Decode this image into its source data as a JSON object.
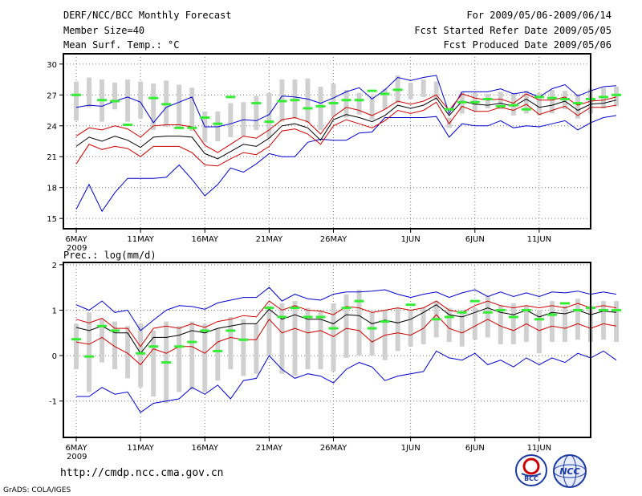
{
  "header": {
    "title": "DERF/NCC/BCC Monthly Forecast",
    "member_size": "Member Size=40",
    "variable": "Mean Surf. Temp.: °C",
    "period": "For 2009/05/06-2009/06/14",
    "started": "Fcst Started Refer Date 2009/05/05",
    "produced": "Fcst Produced Date 2009/05/06"
  },
  "footer": {
    "url": "http://cmdp.ncc.cma.gov.cn",
    "credit": "GrADS: COLA/IGES",
    "logo_left": "BCC",
    "logo_right": "NCC"
  },
  "colors": {
    "envelope": "#0000cc",
    "spread": "#cc0000",
    "mean": "#000000",
    "bar": "#d0d0d0",
    "observed": "#33ee33",
    "grid": "#777777"
  },
  "chart_data": [
    {
      "type": "line",
      "panel": "temperature",
      "title": "Mean Surf. Temp.: °C",
      "x_ticks": [
        "6MAY",
        "11MAY",
        "16MAY",
        "21MAY",
        "26MAY",
        "1JUN",
        "6JUN",
        "11JUN"
      ],
      "x_tick_index": [
        0,
        5,
        10,
        15,
        20,
        26,
        31,
        36
      ],
      "x_year": "2009",
      "xlim": [
        -1,
        40
      ],
      "ylim": [
        14,
        31
      ],
      "y_ticks": [
        15,
        18,
        21,
        24,
        27,
        30
      ],
      "series": [
        {
          "name": "max",
          "color": "#0000cc",
          "values": [
            25.8,
            26.0,
            25.9,
            26.4,
            26.8,
            26.3,
            24.3,
            25.8,
            26.3,
            26.8,
            23.9,
            23.9,
            24.2,
            24.6,
            24.5,
            25.1,
            26.9,
            26.8,
            26.6,
            26.2,
            26.7,
            27.3,
            27.7,
            26.6,
            27.5,
            28.7,
            28.4,
            28.7,
            28.9,
            25.2,
            27.3,
            27.3,
            27.3,
            27.6,
            27.1,
            27.3,
            26.8,
            27.6,
            28.0,
            26.9,
            27.4,
            27.8,
            27.9
          ]
        },
        {
          "name": "upper",
          "color": "#cc0000",
          "values": [
            23.0,
            23.8,
            23.6,
            24.0,
            23.7,
            22.9,
            24.0,
            24.1,
            24.1,
            23.9,
            22.1,
            21.4,
            22.2,
            23.0,
            22.8,
            23.6,
            24.6,
            24.8,
            24.4,
            23.2,
            24.9,
            25.8,
            25.5,
            25.0,
            25.6,
            26.4,
            26.1,
            26.4,
            27.0,
            25.5,
            27.1,
            26.7,
            26.5,
            26.6,
            26.2,
            27.1,
            26.5,
            26.5,
            26.8,
            26.0,
            26.4,
            26.5,
            26.8
          ]
        },
        {
          "name": "mean",
          "color": "#000000",
          "values": [
            22.0,
            22.9,
            22.5,
            23.0,
            22.6,
            21.9,
            22.9,
            23.0,
            23.0,
            22.9,
            21.3,
            20.8,
            21.5,
            22.2,
            22.0,
            22.8,
            24.0,
            24.2,
            23.8,
            22.6,
            24.6,
            25.1,
            24.8,
            24.4,
            25.0,
            26.0,
            25.7,
            26.0,
            26.7,
            25.0,
            26.4,
            26.1,
            26.0,
            26.2,
            25.9,
            26.6,
            25.8,
            26.0,
            26.4,
            25.5,
            26.1,
            26.2,
            26.5
          ]
        },
        {
          "name": "lower",
          "color": "#cc0000",
          "values": [
            20.3,
            22.2,
            21.7,
            22.0,
            21.8,
            21.0,
            22.0,
            22.0,
            22.0,
            21.4,
            20.2,
            20.1,
            20.8,
            21.4,
            21.2,
            22.0,
            23.5,
            23.7,
            23.2,
            22.2,
            24.0,
            24.6,
            24.2,
            23.8,
            24.5,
            25.5,
            25.2,
            25.5,
            26.3,
            24.2,
            25.9,
            25.4,
            25.4,
            25.8,
            25.5,
            26.1,
            25.1,
            25.5,
            25.9,
            25.0,
            25.8,
            25.8,
            26.0
          ]
        },
        {
          "name": "min",
          "color": "#0000cc",
          "values": [
            15.9,
            18.3,
            15.7,
            17.5,
            18.9,
            18.9,
            18.9,
            19.0,
            20.2,
            18.8,
            17.2,
            18.3,
            19.9,
            19.5,
            20.3,
            21.3,
            21.0,
            21.0,
            22.4,
            22.7,
            22.6,
            22.6,
            23.3,
            23.4,
            24.8,
            24.8,
            24.8,
            24.8,
            24.9,
            22.9,
            24.2,
            24.0,
            24.0,
            24.5,
            23.8,
            24.0,
            23.9,
            24.2,
            24.5,
            23.6,
            24.3,
            24.8,
            25.0
          ]
        },
        {
          "name": "bar_top",
          "values": [
            28.3,
            28.7,
            28.5,
            28.2,
            28.5,
            28.3,
            28.1,
            28.4,
            28.0,
            27.7,
            25.4,
            25.4,
            26.2,
            26.3,
            26.9,
            27.2,
            28.5,
            28.5,
            28.6,
            27.8,
            28.1,
            27.5,
            27.2,
            26.9,
            27.6,
            28.9,
            28.2,
            28.5,
            28.3,
            24.8,
            27.3,
            27.2,
            27.1,
            27.3,
            27.1,
            27.4,
            27.2,
            27.5,
            27.4,
            27.1,
            27.6,
            27.7,
            27.8
          ]
        },
        {
          "name": "bar_bottom",
          "values": [
            24.5,
            25.8,
            24.4,
            25.6,
            24.4,
            24.7,
            23.6,
            23.9,
            23.8,
            23.5,
            22.4,
            22.5,
            22.9,
            23.0,
            23.6,
            22.8,
            24.4,
            24.7,
            24.3,
            23.6,
            24.9,
            24.8,
            25.1,
            24.6,
            25.6,
            26.2,
            26.6,
            26.8,
            26.5,
            23.8,
            25.2,
            25.4,
            25.7,
            25.6,
            25.0,
            25.2,
            25.0,
            25.2,
            25.6,
            24.7,
            25.2,
            25.7,
            25.9
          ]
        },
        {
          "name": "observed",
          "color": "#33ee33",
          "values": [
            27.0,
            null,
            26.5,
            26.4,
            24.1,
            null,
            26.7,
            26.1,
            23.8,
            23.8,
            24.8,
            24.2,
            26.8,
            null,
            26.2,
            24.4,
            26.4,
            26.5,
            25.7,
            25.9,
            26.2,
            26.5,
            26.5,
            27.4,
            27.1,
            27.5,
            null,
            null,
            null,
            25.6,
            26.3,
            26.3,
            26.6,
            25.9,
            26.0,
            25.6,
            26.8,
            26.7,
            26.6,
            26.2,
            26.6,
            26.8,
            27.0
          ]
        }
      ]
    },
    {
      "type": "line",
      "panel": "precipitation",
      "title": "Prec.: log(mm/d)",
      "x_ticks": [
        "6MAY",
        "11MAY",
        "16MAY",
        "21MAY",
        "26MAY",
        "1JUN",
        "6JUN",
        "11JUN"
      ],
      "x_tick_index": [
        0,
        5,
        10,
        15,
        20,
        26,
        31,
        36
      ],
      "x_year": "2009",
      "xlim": [
        -1,
        40
      ],
      "ylim": [
        -1.8,
        2.05
      ],
      "y_ticks": [
        -1,
        0,
        1,
        2
      ],
      "series": [
        {
          "name": "max",
          "color": "#0000cc",
          "values": [
            1.12,
            1.0,
            1.2,
            0.95,
            1.0,
            0.55,
            0.78,
            1.0,
            1.1,
            1.08,
            1.02,
            1.16,
            1.22,
            1.28,
            1.28,
            1.5,
            1.2,
            1.35,
            1.25,
            1.22,
            1.35,
            1.4,
            1.4,
            1.42,
            1.45,
            1.35,
            1.28,
            1.35,
            1.4,
            1.28,
            1.38,
            1.45,
            1.3,
            1.4,
            1.3,
            1.38,
            1.3,
            1.4,
            1.38,
            1.42,
            1.35,
            1.4,
            1.35
          ]
        },
        {
          "name": "upper",
          "color": "#cc0000",
          "values": [
            0.8,
            0.72,
            0.82,
            0.6,
            0.6,
            0.2,
            0.6,
            0.65,
            0.6,
            0.7,
            0.62,
            0.75,
            0.8,
            0.88,
            0.85,
            1.2,
            1.0,
            1.1,
            1.0,
            0.98,
            0.9,
            1.08,
            1.05,
            0.95,
            1.0,
            1.05,
            1.0,
            1.05,
            1.2,
            1.0,
            0.95,
            1.1,
            1.2,
            1.1,
            1.05,
            1.1,
            1.05,
            1.1,
            1.05,
            1.15,
            1.05,
            1.1,
            1.05
          ]
        },
        {
          "name": "mean",
          "color": "#000000",
          "values": [
            0.62,
            0.55,
            0.65,
            0.5,
            0.5,
            0.05,
            0.4,
            0.4,
            0.45,
            0.55,
            0.5,
            0.6,
            0.65,
            0.7,
            0.7,
            1.02,
            0.8,
            0.9,
            0.8,
            0.8,
            0.7,
            0.9,
            0.88,
            0.7,
            0.78,
            0.72,
            0.8,
            0.95,
            1.12,
            0.9,
            0.85,
            0.95,
            1.05,
            0.95,
            0.9,
            1.0,
            0.85,
            0.95,
            0.92,
            1.0,
            0.9,
            0.98,
            0.95
          ]
        },
        {
          "name": "lower",
          "color": "#cc0000",
          "values": [
            0.3,
            0.25,
            0.4,
            0.2,
            0.05,
            -0.2,
            0.15,
            0.05,
            0.2,
            0.2,
            0.05,
            0.3,
            0.4,
            0.35,
            0.35,
            0.8,
            0.5,
            0.6,
            0.5,
            0.55,
            0.42,
            0.6,
            0.55,
            0.3,
            0.45,
            0.5,
            0.45,
            0.6,
            0.9,
            0.6,
            0.5,
            0.65,
            0.8,
            0.65,
            0.55,
            0.7,
            0.55,
            0.65,
            0.6,
            0.7,
            0.6,
            0.7,
            0.65
          ]
        },
        {
          "name": "min",
          "color": "#0000cc",
          "values": [
            -0.9,
            -0.9,
            -0.7,
            -0.85,
            -0.8,
            -1.25,
            -1.05,
            -1.0,
            -0.95,
            -0.7,
            -0.85,
            -0.65,
            -0.95,
            -0.55,
            -0.5,
            0.0,
            -0.3,
            -0.5,
            -0.4,
            -0.45,
            -0.6,
            -0.3,
            -0.15,
            -0.25,
            -0.55,
            -0.45,
            -0.4,
            -0.35,
            0.1,
            -0.05,
            -0.1,
            0.05,
            -0.2,
            -0.1,
            -0.25,
            -0.05,
            -0.2,
            -0.05,
            -0.15,
            0.05,
            -0.05,
            0.1,
            -0.1
          ]
        },
        {
          "name": "bar_top",
          "values": [
            0.7,
            0.95,
            0.8,
            0.75,
            0.65,
            0.7,
            0.55,
            0.75,
            0.65,
            0.75,
            0.7,
            0.6,
            0.85,
            0.8,
            0.7,
            1.1,
            1.15,
            1.2,
            1.05,
            1.0,
            1.15,
            1.35,
            1.45,
            0.95,
            1.0,
            1.05,
            1.0,
            1.05,
            1.2,
            1.05,
            1.0,
            1.05,
            1.3,
            1.1,
            1.15,
            1.1,
            1.0,
            1.2,
            1.1,
            1.25,
            1.1,
            1.2,
            1.2
          ]
        },
        {
          "name": "bar_bottom",
          "values": [
            -0.3,
            -0.8,
            -0.15,
            -0.3,
            -0.5,
            -0.7,
            -0.9,
            -1.05,
            -0.8,
            -0.75,
            -0.8,
            -0.55,
            -0.3,
            -0.45,
            -0.4,
            0.0,
            -0.4,
            -0.45,
            -0.3,
            -0.3,
            -0.35,
            -0.05,
            0.0,
            0.0,
            -0.1,
            0.1,
            0.2,
            0.25,
            0.4,
            0.3,
            0.2,
            0.35,
            0.4,
            0.25,
            0.25,
            0.3,
            0.05,
            0.3,
            0.3,
            0.35,
            0.3,
            0.35,
            0.3
          ]
        },
        {
          "name": "observed",
          "color": "#33ee33",
          "values": [
            0.36,
            -0.02,
            0.65,
            0.55,
            null,
            0.05,
            0.2,
            -0.15,
            0.2,
            0.3,
            0.55,
            0.1,
            0.55,
            0.35,
            null,
            1.05,
            0.85,
            1.05,
            0.85,
            0.85,
            0.6,
            1.05,
            1.2,
            0.6,
            0.75,
            null,
            1.12,
            null,
            0.8,
            0.85,
            0.95,
            1.2,
            0.95,
            1.0,
            0.85,
            1.0,
            0.8,
            0.9,
            1.15,
            1.0,
            1.05,
            1.0,
            1.0
          ]
        }
      ]
    }
  ]
}
